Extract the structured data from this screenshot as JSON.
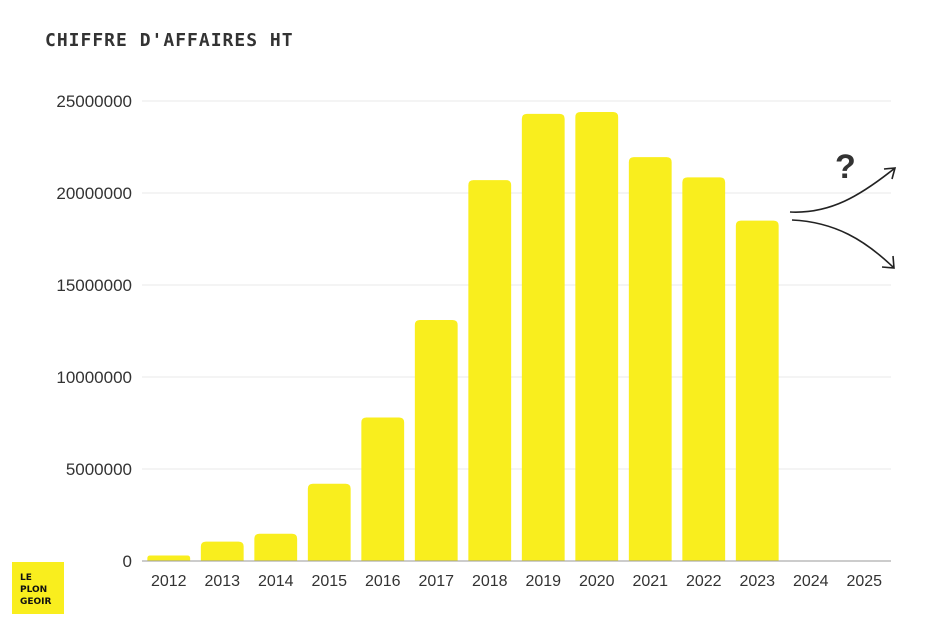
{
  "chart_data": {
    "type": "bar",
    "title": "CHIFFRE D'AFFAIRES HT",
    "categories": [
      "2012",
      "2013",
      "2014",
      "2015",
      "2016",
      "2017",
      "2018",
      "2019",
      "2020",
      "2021",
      "2022",
      "2023",
      "2024",
      "2025"
    ],
    "values": [
      300000,
      1050000,
      1480000,
      4200000,
      7800000,
      13100000,
      20700000,
      24300000,
      24400000,
      21950000,
      20850000,
      18500000,
      null,
      null
    ],
    "ylim": [
      0,
      25000000
    ],
    "yticks": [
      "0",
      "5000000",
      "10000000",
      "15000000",
      "20000000",
      "25000000"
    ],
    "grid": true,
    "bar_color": "#f9ee1e",
    "annotation": "?"
  },
  "logo": {
    "lines": [
      "LE",
      "PLON",
      "GEOIR"
    ],
    "color": "#f9ee1e"
  }
}
